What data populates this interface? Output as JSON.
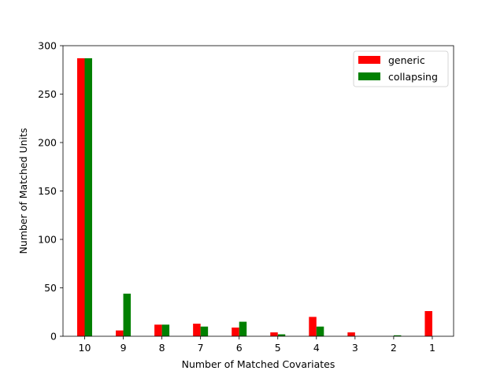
{
  "chart_data": {
    "type": "bar",
    "xlabel": "Number of Matched Covariates",
    "ylabel": "Number of Matched Units",
    "categories": [
      "10",
      "9",
      "8",
      "7",
      "6",
      "5",
      "4",
      "3",
      "2",
      "1"
    ],
    "ylim": [
      0,
      300
    ],
    "yticks": [
      0,
      50,
      100,
      150,
      200,
      250,
      300
    ],
    "series": [
      {
        "name": "generic",
        "color": "#ff0000",
        "values": [
          287,
          6,
          12,
          13,
          9,
          4,
          20,
          4,
          0,
          26
        ]
      },
      {
        "name": "collapsing",
        "color": "#008000",
        "values": [
          287,
          44,
          12,
          10,
          15,
          2,
          10,
          0,
          1,
          0
        ]
      }
    ],
    "legend": "top-right",
    "grid": false
  }
}
